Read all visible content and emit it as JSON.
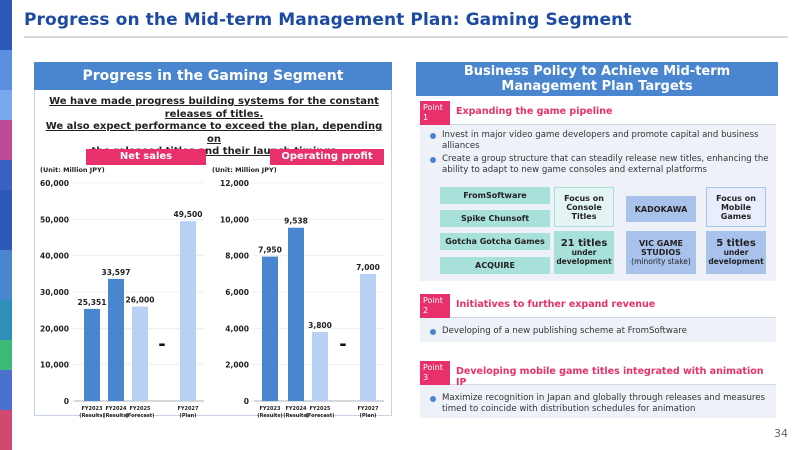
{
  "page_title": "Progress on the Mid-term Management Plan: Gaming Segment",
  "left": {
    "heading": "Progress in the Gaming Segment",
    "lead_line1": "We have made progress building systems for the constant",
    "lead_line2": "releases of titles.",
    "lead_line3": "We also expect performance to exceed the plan, depending on",
    "lead_line4": "the released titles and their launch timings",
    "net_sales_label": "Net sales",
    "op_profit_label": "Operating profit"
  },
  "chart_data": [
    {
      "type": "bar",
      "title": "Net sales",
      "unit": "(Unit: Million JPY)",
      "categories": [
        "FY2023 (Results)",
        "FY2024 (Results)",
        "FY2025 (Forecast)",
        "FY2027 (Plan)"
      ],
      "values": [
        25351,
        33597,
        26000,
        49500
      ],
      "value_labels": [
        "25,351",
        "33,597",
        "26,000",
        "49,500"
      ],
      "ylim": [
        0,
        60000
      ],
      "yticks": [
        "0",
        "10,000",
        "20,000",
        "30,000",
        "40,000",
        "50,000",
        "60,000"
      ],
      "gap_marker": "-",
      "colors": [
        "#4a86d0",
        "#4a86d0",
        "#b8d0f2",
        "#b8d0f2"
      ]
    },
    {
      "type": "bar",
      "title": "Operating profit",
      "unit": "(Unit: Million JPY)",
      "categories": [
        "FY2023 (Results)",
        "FY2024 (Results)",
        "FY2025 (Forecast)",
        "FY2027 (Plan)"
      ],
      "values": [
        7950,
        9538,
        3800,
        7000
      ],
      "value_labels": [
        "7,950",
        "9,538",
        "3,800",
        "7,000"
      ],
      "ylim": [
        0,
        12000
      ],
      "yticks": [
        "0",
        "2,000",
        "4,000",
        "6,000",
        "8,000",
        "10,000",
        "12,000"
      ],
      "gap_marker": "-",
      "colors": [
        "#4a86d0",
        "#4a86d0",
        "#b8d0f2",
        "#b8d0f2"
      ]
    }
  ],
  "right": {
    "heading_line1": "Business Policy to Achieve Mid-term",
    "heading_line2": "Management Plan Targets",
    "point1": {
      "tag_line1": "Point",
      "tag_line2": "1",
      "title": "Expanding the game pipeline",
      "bullet1": "Invest in major video game developers and promote capital and business alliances",
      "bullet2": "Create a group structure that can steadily release new titles, enhancing the ability to adapt to new game consoles and external platforms",
      "studios": [
        "FromSoftware",
        "Spike Chunsoft",
        "Gotcha Gotcha Games",
        "ACQUIRE"
      ],
      "console_focus": "Focus on Console Titles",
      "console_count": "21 titles",
      "console_count_sub": "under development",
      "kadokawa": "KADOKAWA",
      "vic_line1": "VIC GAME STUDIOS",
      "vic_line2": "(minority stake)",
      "mobile_focus": "Focus on Mobile Games",
      "mobile_count": "5 titles",
      "mobile_count_sub": "under development"
    },
    "point2": {
      "tag_line1": "Point",
      "tag_line2": "2",
      "title": "Initiatives to further expand revenue",
      "bullet1": "Developing of a new publishing scheme at FromSoftware"
    },
    "point3": {
      "tag_line1": "Point",
      "tag_line2": "3",
      "title": "Developing mobile game titles integrated with animation IP",
      "bullet1": "Maximize recognition in Japan and globally through releases and measures timed to coincide with distribution schedules for animation"
    }
  },
  "page_number": "34"
}
